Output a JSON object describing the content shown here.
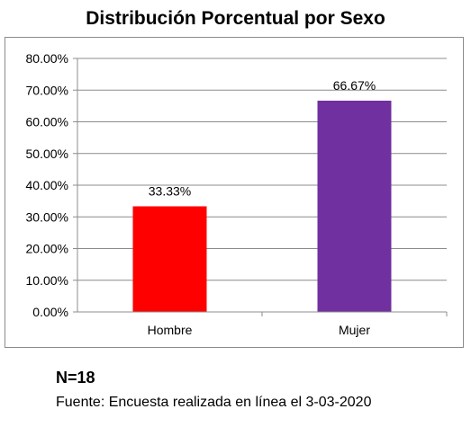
{
  "title": "Distribución Porcentual por Sexo",
  "chart_data": {
    "type": "bar",
    "categories": [
      "Hombre",
      "Mujer"
    ],
    "values": [
      33.33,
      66.67
    ],
    "data_labels": [
      "33.33%",
      "66.67%"
    ],
    "bar_colors": [
      "#ff0000",
      "#7030a0"
    ],
    "ylim": [
      0,
      80
    ],
    "yticks": [
      0,
      10,
      20,
      30,
      40,
      50,
      60,
      70,
      80
    ],
    "ytick_labels": [
      "0.00%",
      "10.00%",
      "20.00%",
      "30.00%",
      "40.00%",
      "50.00%",
      "60.00%",
      "70.00%",
      "80.00%"
    ],
    "grid": true,
    "xlabel": "",
    "ylabel": ""
  },
  "footer": {
    "n": "N=18",
    "source": "Fuente: Encuesta realizada en línea el 3-03-2020"
  }
}
